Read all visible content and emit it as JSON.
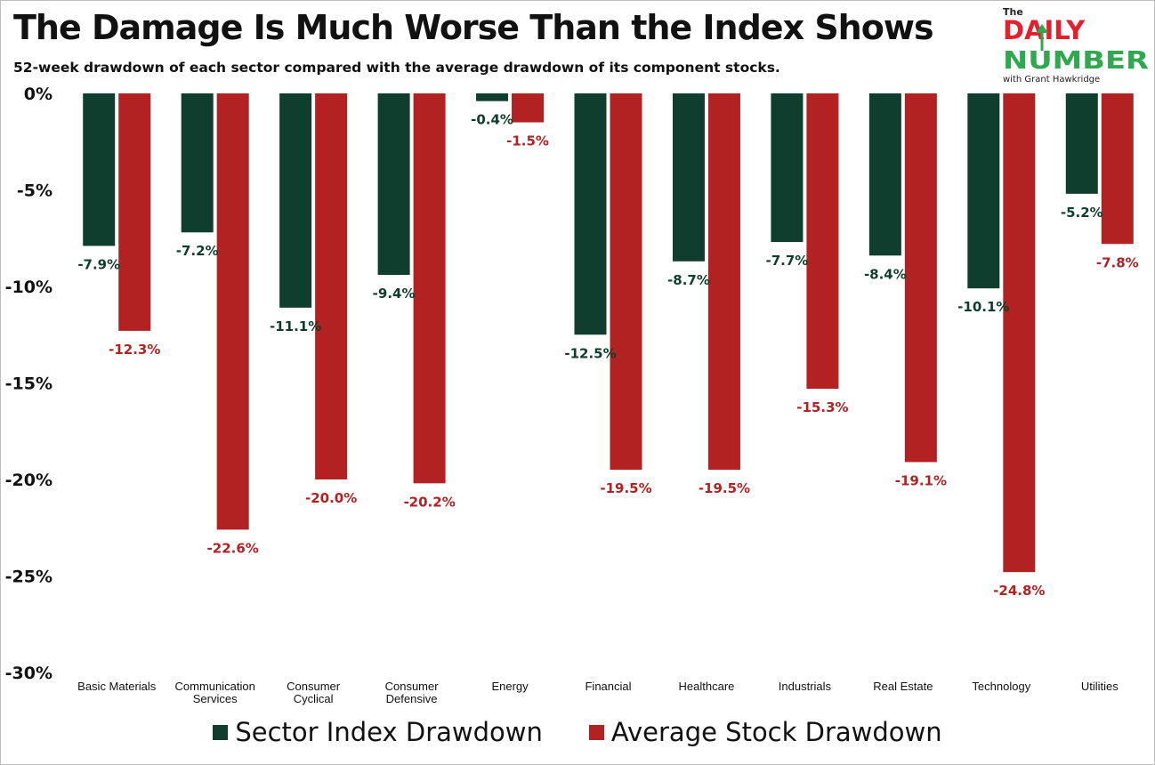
{
  "title": "The Damage Is Much Worse Than the Index Shows",
  "subtitle": "52-week drawdown of each sector compared with the average drawdown of its component stocks.",
  "logo": {
    "the": "The",
    "daily": "DAILY",
    "number": "NUMBER",
    "byline": "with Grant Hawkridge",
    "colors": {
      "red": "#e5202e",
      "green": "#2fa84f",
      "dark": "#222222"
    },
    "icon": "up-arrow-icon"
  },
  "colors": {
    "sector_index": "#0f3d2e",
    "average_stock": "#b22222"
  },
  "legend": {
    "position": "bottom-center",
    "items": [
      "Sector Index Drawdown",
      "Average Stock Drawdown"
    ]
  },
  "chart_data": {
    "type": "bar",
    "categories": [
      "Basic Materials",
      "Communication Services",
      "Consumer Cyclical",
      "Consumer Defensive",
      "Energy",
      "Financial",
      "Healthcare",
      "Industrials",
      "Real Estate",
      "Technology",
      "Utilities"
    ],
    "category_lines": [
      [
        "Basic Materials"
      ],
      [
        "Communication",
        "Services"
      ],
      [
        "Consumer",
        "Cyclical"
      ],
      [
        "Consumer",
        "Defensive"
      ],
      [
        "Energy"
      ],
      [
        "Financial"
      ],
      [
        "Healthcare"
      ],
      [
        "Industrials"
      ],
      [
        "Real Estate"
      ],
      [
        "Technology"
      ],
      [
        "Utilities"
      ]
    ],
    "series": [
      {
        "name": "Sector Index Drawdown",
        "values": [
          -7.9,
          -7.2,
          -11.1,
          -9.4,
          -0.4,
          -12.5,
          -8.7,
          -7.7,
          -8.4,
          -10.1,
          -5.2
        ],
        "labels": [
          "-7.9%",
          "-7.2%",
          "-11.1%",
          "-9.4%",
          "-0.4%",
          "-12.5%",
          "-8.7%",
          "-7.7%",
          "-8.4%",
          "-10.1%",
          "-5.2%"
        ]
      },
      {
        "name": "Average Stock Drawdown",
        "values": [
          -12.3,
          -22.6,
          -20.0,
          -20.2,
          -1.5,
          -19.5,
          -19.5,
          -15.3,
          -19.1,
          -24.8,
          -7.8
        ],
        "labels": [
          "-12.3%",
          "-22.6%",
          "-20.0%",
          "-20.2%",
          "-1.5%",
          "-19.5%",
          "-19.5%",
          "-15.3%",
          "-19.1%",
          "-24.8%",
          "-7.8%"
        ]
      }
    ],
    "y_ticks": [
      0,
      -5,
      -10,
      -15,
      -20,
      -25,
      -30
    ],
    "y_tick_labels": [
      "0%",
      "-5%",
      "-10%",
      "-15%",
      "-20%",
      "-25%",
      "-30%"
    ],
    "ylim": [
      -30,
      0
    ],
    "grid": false,
    "xlabel": "",
    "ylabel": ""
  }
}
